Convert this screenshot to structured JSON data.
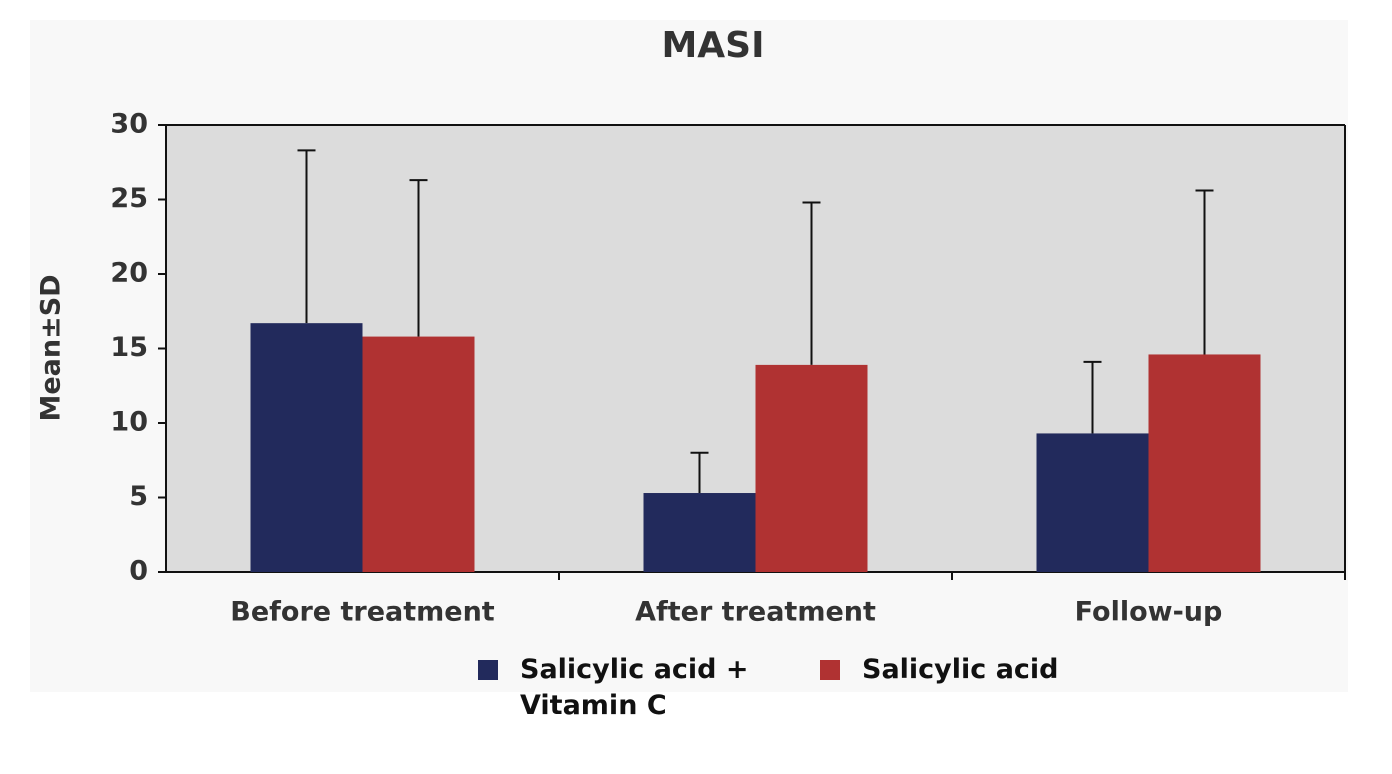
{
  "chart_data": {
    "type": "bar",
    "title": "MASI",
    "y_label": "Mean±SD",
    "categories": [
      "Before treatment",
      "After treatment",
      "Follow-up"
    ],
    "series": [
      {
        "name": "Salicylic acid + Vitamin C",
        "color": "#222a5c",
        "values": [
          16.7,
          5.3,
          9.3
        ],
        "errors": [
          11.6,
          2.7,
          4.8
        ]
      },
      {
        "name": "Salicylic acid",
        "color": "#b03232",
        "values": [
          15.8,
          13.9,
          14.6
        ],
        "errors": [
          10.5,
          10.9,
          11.0
        ]
      }
    ],
    "ylim": [
      0,
      30
    ],
    "yticks": [
      0,
      5,
      10,
      15,
      20,
      25,
      30
    ],
    "background": "#dcdcdc"
  }
}
